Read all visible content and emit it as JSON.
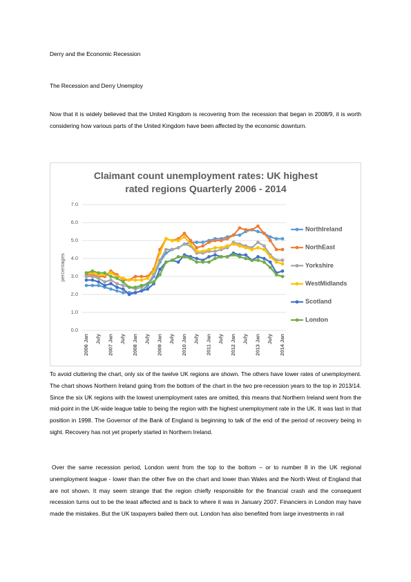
{
  "header": {
    "title": "Derry and the Economic Recession",
    "subtitle": "The Recession and Derry Unemploy"
  },
  "paragraphs": [
    "Now that it is widely believed that the United Kingdom is recovering from the recession that began in 2008/9, it is worth considering how various parts of the United Kingdom have been affected by the economic downturn.",
    "To avoid cluttering the chart, only six of the twelve UK regions are shown. The others have lower rates of unemployment. The chart shows Northern Ireland going from the bottom of the chart in the two pre-recession years to the top in 2013/14. Since the six UK regions with the lowest unemployment rates are omitted, this means that Northern Ireland went from the mid-point in the UK-wide league table to being the region with the highest unemployment rate in the UK. It was last in that position in 1998. The Governor of the Bank of England is beginning to talk of the end of the period of recovery being in sight. Recovery has not yet properly started in Northern Ireland.",
    "Over the same recession period, London went from the top to the bottom – or to number 8 in the UK regional unemployment league - lower than the other five on the chart and lower than Wales and the North West of England that are not shown. It may seem strange that the region chiefly responsible for the financial crash and the consequent recession turns out to be the least affected and is back to where it was in January 2007. Financiers in London may have made the mistakes. But the UK taxpayers bailed them out. London has also benefited from large investments in rail"
  ],
  "chart_data": {
    "type": "line",
    "title": "Claimant count unemployment rates: UK highest rated regions Quarterly 2006 - 2014",
    "y_label": "percentages",
    "categories": [
      "2006 Jan",
      null,
      "July",
      null,
      "2007 Jan",
      null,
      "July",
      null,
      "2008 Jan",
      null,
      "July",
      null,
      "2009 Jan",
      null,
      "July",
      null,
      "2010 Jan",
      null,
      "July",
      null,
      "2011 Jan",
      null,
      "July",
      null,
      "2012 Jan",
      null,
      "July",
      null,
      "2013 Jan",
      null,
      "July",
      null,
      "2014 Jan"
    ],
    "ylim": [
      0,
      7
    ],
    "yticks": [
      {
        "value": 0,
        "label": "0.0"
      },
      {
        "value": 1,
        "label": "1.0"
      },
      {
        "value": 2,
        "label": "2.0"
      },
      {
        "value": 3,
        "label": "3.0"
      },
      {
        "value": 4,
        "label": "4.0"
      },
      {
        "value": 5,
        "label": "5.0"
      },
      {
        "value": 6,
        "label": "6.0"
      },
      {
        "value": 7,
        "label": "7.0"
      }
    ],
    "grid": true,
    "legend": "right",
    "series": [
      {
        "name": "NorthIreland",
        "color": "#5b9bd5",
        "values": [
          2.5,
          2.5,
          2.5,
          2.4,
          2.3,
          2.2,
          2.1,
          2.1,
          2.1,
          2.2,
          2.5,
          3.0,
          3.8,
          4.3,
          4.5,
          4.6,
          4.8,
          4.9,
          4.9,
          4.9,
          5.0,
          5.1,
          5.1,
          5.2,
          5.3,
          5.3,
          5.5,
          5.6,
          5.5,
          5.4,
          5.2,
          5.1,
          5.1
        ]
      },
      {
        "name": "NorthEast",
        "color": "#ed7d31",
        "values": [
          3.1,
          3.1,
          3.0,
          3.0,
          3.3,
          3.1,
          2.8,
          2.8,
          3.0,
          3.0,
          3.0,
          3.4,
          4.5,
          5.1,
          5.0,
          5.1,
          5.4,
          5.0,
          4.6,
          4.7,
          4.9,
          5.0,
          5.0,
          5.1,
          5.3,
          5.7,
          5.6,
          5.6,
          5.8,
          5.4,
          5.0,
          4.5,
          4.5
        ]
      },
      {
        "name": "Yorkshire",
        "color": "#a5a5a5",
        "values": [
          3.0,
          3.0,
          2.9,
          2.7,
          2.8,
          2.6,
          2.5,
          2.4,
          2.3,
          2.4,
          2.6,
          3.1,
          3.9,
          4.5,
          4.5,
          4.6,
          4.8,
          4.7,
          4.3,
          4.3,
          4.4,
          4.4,
          4.5,
          4.6,
          4.9,
          4.8,
          4.7,
          4.6,
          4.9,
          4.7,
          4.2,
          3.9,
          3.9
        ]
      },
      {
        "name": "WestMidlands",
        "color": "#ffc000",
        "values": [
          3.2,
          3.2,
          3.1,
          3.1,
          3.2,
          3.0,
          2.9,
          2.8,
          2.8,
          2.8,
          2.9,
          3.3,
          4.3,
          5.1,
          5.0,
          5.0,
          5.2,
          4.8,
          4.4,
          4.4,
          4.5,
          4.6,
          4.6,
          4.7,
          4.8,
          4.7,
          4.6,
          4.5,
          4.6,
          4.5,
          4.1,
          3.8,
          3.7
        ]
      },
      {
        "name": "Scotland",
        "color": "#4472c4",
        "values": [
          2.8,
          2.8,
          2.7,
          2.5,
          2.6,
          2.4,
          2.3,
          2.0,
          2.1,
          2.2,
          2.3,
          2.6,
          3.4,
          3.8,
          3.9,
          3.8,
          4.2,
          4.1,
          4.0,
          3.9,
          4.1,
          4.2,
          4.1,
          4.1,
          4.3,
          4.2,
          4.2,
          3.9,
          4.1,
          4.0,
          3.8,
          3.2,
          3.3
        ]
      },
      {
        "name": "London",
        "color": "#70ad47",
        "values": [
          3.2,
          3.3,
          3.2,
          3.2,
          3.0,
          2.9,
          2.7,
          2.4,
          2.4,
          2.5,
          2.6,
          2.7,
          3.1,
          3.8,
          3.9,
          4.1,
          4.1,
          4.0,
          3.8,
          3.8,
          3.8,
          4.0,
          4.1,
          4.1,
          4.2,
          4.1,
          4.0,
          3.9,
          3.9,
          3.8,
          3.5,
          3.1,
          3.0
        ]
      }
    ]
  }
}
